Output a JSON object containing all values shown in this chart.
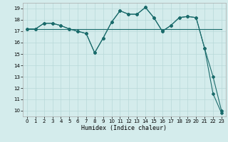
{
  "title": "",
  "xlabel": "Humidex (Indice chaleur)",
  "xlim": [
    -0.5,
    23.5
  ],
  "ylim": [
    9.5,
    19.5
  ],
  "yticks": [
    10,
    11,
    12,
    13,
    14,
    15,
    16,
    17,
    18,
    19
  ],
  "xticks": [
    0,
    1,
    2,
    3,
    4,
    5,
    6,
    7,
    8,
    9,
    10,
    11,
    12,
    13,
    14,
    15,
    16,
    17,
    18,
    19,
    20,
    21,
    22,
    23
  ],
  "bg_color": "#d4ecec",
  "grid_color": "#b8d8d8",
  "line_color": "#1a6b6b",
  "series": [
    {
      "x": [
        0,
        1,
        2,
        3,
        4,
        5,
        6,
        7,
        8,
        9,
        10,
        11,
        12,
        13,
        14,
        15,
        16,
        17,
        18,
        19,
        20,
        21,
        22,
        23
      ],
      "y": [
        17.2,
        17.2,
        17.2,
        17.2,
        17.2,
        17.2,
        17.2,
        17.2,
        17.2,
        17.2,
        17.2,
        17.2,
        17.2,
        17.2,
        17.2,
        17.2,
        17.2,
        17.2,
        17.2,
        17.2,
        17.2,
        17.2,
        17.2,
        17.2
      ],
      "marker": false
    },
    {
      "x": [
        0,
        1,
        2,
        3,
        4,
        5,
        6,
        7,
        8,
        9,
        10,
        11,
        12,
        13,
        14,
        15,
        16,
        17,
        18,
        19,
        20,
        21,
        22,
        23
      ],
      "y": [
        17.2,
        17.2,
        17.7,
        17.7,
        17.5,
        17.2,
        17.0,
        16.8,
        15.1,
        16.4,
        17.8,
        18.8,
        18.5,
        18.5,
        19.1,
        18.2,
        17.0,
        17.5,
        18.2,
        18.3,
        18.2,
        15.5,
        13.0,
        10.0
      ],
      "marker": true
    },
    {
      "x": [
        0,
        1,
        2,
        3,
        4,
        5,
        6,
        7,
        8,
        9,
        10,
        11,
        12,
        13,
        14,
        15,
        16,
        17,
        18,
        19,
        20,
        21,
        22,
        23
      ],
      "y": [
        17.2,
        17.2,
        17.7,
        17.7,
        17.5,
        17.2,
        17.0,
        16.8,
        15.1,
        16.4,
        17.8,
        18.8,
        18.5,
        18.5,
        19.1,
        18.2,
        17.0,
        17.5,
        18.2,
        18.3,
        18.2,
        15.5,
        11.5,
        9.8
      ],
      "marker": true
    }
  ]
}
